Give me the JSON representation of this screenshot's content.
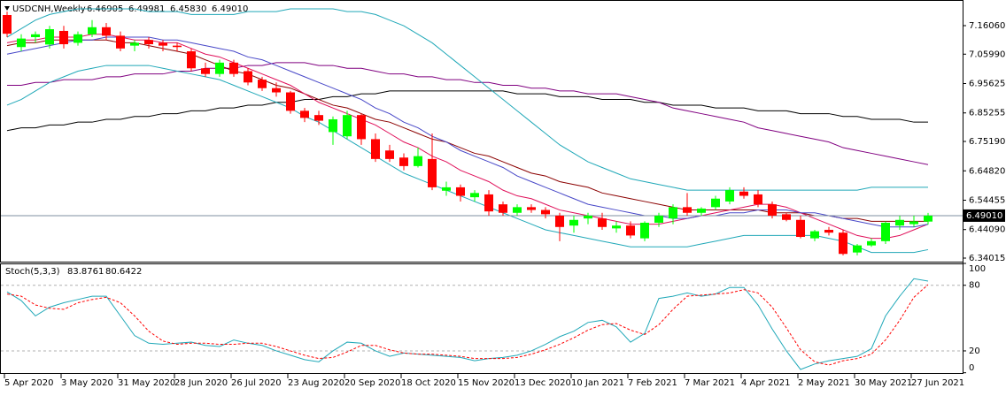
{
  "chart_data": [
    {
      "type": "candlestick",
      "title": "USDCNH,Weekly",
      "ohlc_labels": [
        "6.46905",
        "6.49981",
        "6.45830",
        "6.49010"
      ],
      "categories": [
        "5 Apr 2020",
        null,
        null,
        null,
        "3 May 2020",
        null,
        null,
        null,
        "31 May 2020",
        null,
        null,
        null,
        "28 Jun 2020",
        null,
        null,
        null,
        "26 Jul 2020",
        null,
        null,
        null,
        "23 Aug 2020",
        null,
        null,
        null,
        "20 Sep 2020",
        null,
        null,
        null,
        "18 Oct 2020",
        null,
        null,
        null,
        "15 Nov 2020",
        null,
        null,
        null,
        "13 Dec 2020",
        null,
        null,
        null,
        "10 Jan 2021",
        null,
        null,
        null,
        "7 Feb 2021",
        null,
        null,
        null,
        "7 Mar 2021",
        null,
        null,
        null,
        "4 Apr 2021",
        null,
        null,
        null,
        "2 May 2021",
        null,
        null,
        null,
        "30 May 2021",
        null,
        null,
        null,
        "27 Jun 2021",
        null
      ],
      "open": [
        7.198,
        7.085,
        7.12,
        7.094,
        7.142,
        7.1,
        7.13,
        7.155,
        7.125,
        7.09,
        7.11,
        7.1,
        7.09,
        7.07,
        7.01,
        6.99,
        7.03,
        7.0,
        6.97,
        6.94,
        6.925,
        6.86,
        6.845,
        6.785,
        6.77,
        6.845,
        6.76,
        6.72,
        6.695,
        6.665,
        6.69,
        6.578,
        6.59,
        6.555,
        6.565,
        6.53,
        6.5,
        6.52,
        6.51,
        6.49,
        6.455,
        6.48,
        6.48,
        6.445,
        6.455,
        6.41,
        6.465,
        6.48,
        6.52,
        6.5,
        6.52,
        6.54,
        6.575,
        6.565,
        6.53,
        6.495,
        6.475,
        6.41,
        6.44,
        6.43,
        6.36,
        6.385,
        6.4,
        6.455,
        6.46,
        6.46905
      ],
      "high": [
        7.21,
        7.13,
        7.14,
        7.16,
        7.16,
        7.14,
        7.18,
        7.17,
        7.14,
        7.11,
        7.12,
        7.11,
        7.1,
        7.08,
        7.03,
        7.04,
        7.04,
        7.01,
        6.98,
        6.96,
        6.93,
        6.87,
        6.86,
        6.84,
        6.86,
        6.85,
        6.78,
        6.74,
        6.71,
        6.73,
        6.78,
        6.61,
        6.6,
        6.58,
        6.58,
        6.54,
        6.53,
        6.53,
        6.52,
        6.5,
        6.49,
        6.5,
        6.5,
        6.47,
        6.47,
        6.47,
        6.5,
        6.53,
        6.57,
        6.52,
        6.56,
        6.59,
        6.59,
        6.58,
        6.54,
        6.5,
        6.49,
        6.44,
        6.45,
        6.44,
        6.39,
        6.41,
        6.47,
        6.49,
        6.49,
        6.49981
      ],
      "low": [
        7.12,
        7.07,
        7.1,
        7.08,
        7.08,
        7.09,
        7.12,
        7.11,
        7.07,
        7.07,
        7.08,
        7.07,
        7.07,
        7.0,
        6.98,
        6.98,
        6.98,
        6.95,
        6.93,
        6.91,
        6.85,
        6.82,
        6.81,
        6.74,
        6.76,
        6.74,
        6.68,
        6.68,
        6.65,
        6.66,
        6.58,
        6.56,
        6.54,
        6.54,
        6.49,
        6.49,
        6.49,
        6.5,
        6.48,
        6.4,
        6.43,
        6.46,
        6.44,
        6.43,
        6.41,
        6.4,
        6.45,
        6.46,
        6.49,
        6.49,
        6.51,
        6.53,
        6.55,
        6.52,
        6.48,
        6.47,
        6.41,
        6.4,
        6.42,
        6.35,
        6.35,
        6.38,
        6.39,
        6.44,
        6.45,
        6.4583
      ],
      "close": [
        7.132,
        7.115,
        7.13,
        7.148,
        7.095,
        7.13,
        7.155,
        7.125,
        7.08,
        7.1,
        7.095,
        7.09,
        7.085,
        7.01,
        6.99,
        7.03,
        6.99,
        6.96,
        6.94,
        6.925,
        6.86,
        6.835,
        6.825,
        6.83,
        6.845,
        6.76,
        6.69,
        6.69,
        6.665,
        6.7,
        6.59,
        6.59,
        6.56,
        6.57,
        6.505,
        6.5,
        6.52,
        6.51,
        6.495,
        6.45,
        6.475,
        6.49,
        6.45,
        6.455,
        6.42,
        6.465,
        6.49,
        6.52,
        6.5,
        6.515,
        6.55,
        6.58,
        6.56,
        6.53,
        6.49,
        6.475,
        6.415,
        6.435,
        6.43,
        6.355,
        6.385,
        6.4,
        6.465,
        6.475,
        6.47,
        6.4901
      ],
      "up_color": "#00ff00",
      "down_color": "#ff0000",
      "lines": [
        {
          "color": "#000000",
          "values": [
            6.79,
            6.8,
            6.8,
            6.81,
            6.81,
            6.82,
            6.82,
            6.83,
            6.83,
            6.84,
            6.84,
            6.85,
            6.85,
            6.86,
            6.86,
            6.87,
            6.87,
            6.88,
            6.88,
            6.89,
            6.89,
            6.9,
            6.9,
            6.91,
            6.91,
            6.92,
            6.92,
            6.93,
            6.93,
            6.93,
            6.93,
            6.93,
            6.93,
            6.93,
            6.93,
            6.93,
            6.92,
            6.92,
            6.92,
            6.91,
            6.91,
            6.91,
            6.9,
            6.9,
            6.9,
            6.89,
            6.89,
            6.88,
            6.88,
            6.88,
            6.87,
            6.87,
            6.87,
            6.86,
            6.86,
            6.86,
            6.85,
            6.85,
            6.85,
            6.84,
            6.84,
            6.83,
            6.83,
            6.83,
            6.82,
            6.82
          ]
        },
        {
          "color": "#800080",
          "values": [
            6.95,
            6.95,
            6.96,
            6.96,
            6.97,
            6.97,
            6.97,
            6.98,
            6.98,
            6.99,
            6.99,
            6.99,
            7.0,
            7.0,
            7.01,
            7.01,
            7.01,
            7.02,
            7.02,
            7.03,
            7.03,
            7.03,
            7.02,
            7.02,
            7.01,
            7.01,
            7.0,
            6.99,
            6.99,
            6.98,
            6.98,
            6.97,
            6.97,
            6.96,
            6.96,
            6.95,
            6.95,
            6.94,
            6.94,
            6.93,
            6.93,
            6.92,
            6.92,
            6.92,
            6.91,
            6.9,
            6.89,
            6.87,
            6.86,
            6.85,
            6.84,
            6.83,
            6.82,
            6.8,
            6.79,
            6.78,
            6.77,
            6.76,
            6.75,
            6.73,
            6.72,
            6.71,
            6.7,
            6.69,
            6.68,
            6.67
          ]
        },
        {
          "color": "#8b0000",
          "values": [
            7.09,
            7.1,
            7.1,
            7.11,
            7.11,
            7.11,
            7.11,
            7.11,
            7.1,
            7.1,
            7.09,
            7.08,
            7.07,
            7.06,
            7.04,
            7.02,
            7.0,
            6.99,
            6.97,
            6.95,
            6.94,
            6.92,
            6.9,
            6.88,
            6.87,
            6.85,
            6.83,
            6.82,
            6.8,
            6.78,
            6.76,
            6.75,
            6.73,
            6.71,
            6.7,
            6.68,
            6.66,
            6.64,
            6.63,
            6.61,
            6.6,
            6.59,
            6.57,
            6.56,
            6.55,
            6.54,
            6.53,
            6.52,
            6.51,
            6.51,
            6.51,
            6.51,
            6.51,
            6.51,
            6.5,
            6.5,
            6.5,
            6.49,
            6.49,
            6.48,
            6.48,
            6.47,
            6.47,
            6.47,
            6.47,
            6.47
          ]
        },
        {
          "color": "#e0105a",
          "values": [
            7.1,
            7.11,
            7.11,
            7.12,
            7.12,
            7.12,
            7.13,
            7.13,
            7.12,
            7.11,
            7.11,
            7.1,
            7.1,
            7.08,
            7.06,
            7.05,
            7.03,
            7.01,
            6.99,
            6.97,
            6.95,
            6.92,
            6.89,
            6.87,
            6.85,
            6.83,
            6.81,
            6.78,
            6.75,
            6.73,
            6.7,
            6.68,
            6.65,
            6.63,
            6.61,
            6.58,
            6.56,
            6.55,
            6.53,
            6.51,
            6.5,
            6.49,
            6.48,
            6.47,
            6.46,
            6.46,
            6.46,
            6.47,
            6.48,
            6.49,
            6.5,
            6.51,
            6.52,
            6.53,
            6.53,
            6.52,
            6.5,
            6.48,
            6.46,
            6.44,
            6.42,
            6.41,
            6.41,
            6.42,
            6.44,
            6.46
          ]
        },
        {
          "color": "#4848c8",
          "values": [
            7.06,
            7.07,
            7.08,
            7.09,
            7.1,
            7.11,
            7.11,
            7.12,
            7.12,
            7.12,
            7.12,
            7.11,
            7.11,
            7.1,
            7.09,
            7.08,
            7.07,
            7.05,
            7.04,
            7.02,
            7.0,
            6.98,
            6.96,
            6.94,
            6.92,
            6.9,
            6.87,
            6.85,
            6.82,
            6.8,
            6.77,
            6.75,
            6.72,
            6.7,
            6.68,
            6.66,
            6.63,
            6.61,
            6.59,
            6.57,
            6.55,
            6.53,
            6.52,
            6.51,
            6.5,
            6.49,
            6.49,
            6.48,
            6.48,
            6.49,
            6.49,
            6.5,
            6.5,
            6.51,
            6.51,
            6.51,
            6.5,
            6.5,
            6.49,
            6.48,
            6.47,
            6.46,
            6.45,
            6.45,
            6.45,
            6.46
          ]
        },
        {
          "color": "#20a8b8",
          "values": [
            7.12,
            7.15,
            7.18,
            7.2,
            7.21,
            7.22,
            7.22,
            7.22,
            7.22,
            7.22,
            7.21,
            7.21,
            7.21,
            7.2,
            7.2,
            7.2,
            7.2,
            7.21,
            7.21,
            7.21,
            7.22,
            7.22,
            7.22,
            7.22,
            7.21,
            7.21,
            7.2,
            7.18,
            7.16,
            7.13,
            7.1,
            7.06,
            7.02,
            6.98,
            6.94,
            6.9,
            6.86,
            6.82,
            6.78,
            6.74,
            6.71,
            6.68,
            6.66,
            6.64,
            6.62,
            6.61,
            6.6,
            6.59,
            6.58,
            6.58,
            6.58,
            6.58,
            6.58,
            6.58,
            6.58,
            6.58,
            6.58,
            6.58,
            6.58,
            6.58,
            6.58,
            6.59,
            6.59,
            6.59,
            6.59,
            6.59
          ]
        },
        {
          "color": "#20a8b8",
          "values": [
            6.88,
            6.9,
            6.93,
            6.96,
            6.98,
            7.0,
            7.01,
            7.02,
            7.02,
            7.02,
            7.02,
            7.01,
            7.0,
            6.99,
            6.98,
            6.97,
            6.95,
            6.93,
            6.91,
            6.89,
            6.87,
            6.84,
            6.82,
            6.79,
            6.76,
            6.73,
            6.7,
            6.67,
            6.64,
            6.62,
            6.6,
            6.58,
            6.56,
            6.54,
            6.52,
            6.5,
            6.48,
            6.46,
            6.44,
            6.43,
            6.42,
            6.41,
            6.4,
            6.39,
            6.38,
            6.38,
            6.38,
            6.38,
            6.38,
            6.39,
            6.4,
            6.41,
            6.42,
            6.42,
            6.42,
            6.42,
            6.42,
            6.42,
            6.41,
            6.4,
            6.38,
            6.36,
            6.36,
            6.36,
            6.36,
            6.37
          ]
        }
      ],
      "last_price": {
        "value": 6.4901,
        "label": "6.49010"
      },
      "ylim": [
        6.3277,
        7.2417
      ],
      "yticks": [
        {
          "value": 7.1606,
          "label": "7.16060"
        },
        {
          "value": 7.0599,
          "label": "7.05990"
        },
        {
          "value": 6.95625,
          "label": "6.95625"
        },
        {
          "value": 6.85255,
          "label": "6.85255"
        },
        {
          "value": 6.7519,
          "label": "6.75190"
        },
        {
          "value": 6.6482,
          "label": "6.64820"
        },
        {
          "value": 6.54455,
          "label": "6.54455"
        },
        {
          "value": 6.4409,
          "label": "6.44090"
        },
        {
          "value": 6.34015,
          "label": "6.34015"
        }
      ]
    },
    {
      "type": "line",
      "title": "Stoch(5,3,3)",
      "series": [
        {
          "color": "#20a8b8",
          "values": [
            74,
            66,
            52,
            60,
            64,
            67,
            70,
            70,
            52,
            34,
            27,
            26,
            27,
            28,
            25,
            24,
            30,
            27,
            25,
            20,
            16,
            12,
            10,
            20,
            28,
            27,
            20,
            15,
            18,
            17,
            16,
            15,
            14,
            11,
            13,
            14,
            16,
            20,
            26,
            33,
            38,
            46,
            48,
            42,
            28,
            36,
            68,
            70,
            73,
            70,
            72,
            78,
            78,
            62,
            40,
            20,
            3,
            8,
            11,
            13,
            15,
            22,
            52,
            70,
            86,
            83.8761
          ]
        },
        {
          "color": "#ff0000",
          "dashed": true,
          "values": [
            72,
            70,
            62,
            59,
            58,
            64,
            67,
            69,
            64,
            52,
            38,
            29,
            26,
            27,
            27,
            26,
            26,
            27,
            27,
            24,
            20,
            16,
            13,
            14,
            19,
            25,
            25,
            21,
            18,
            17,
            17,
            16,
            15,
            13,
            13,
            13,
            14,
            17,
            21,
            26,
            32,
            39,
            44,
            45,
            39,
            35,
            44,
            58,
            70,
            71,
            72,
            73,
            76,
            73,
            60,
            41,
            21,
            10,
            7,
            11,
            13,
            17,
            30,
            48,
            69,
            80.6422
          ]
        }
      ],
      "ylim": [
        0,
        100
      ],
      "yticks": [
        0,
        20,
        80,
        100
      ],
      "levels": [
        20,
        80
      ]
    }
  ]
}
